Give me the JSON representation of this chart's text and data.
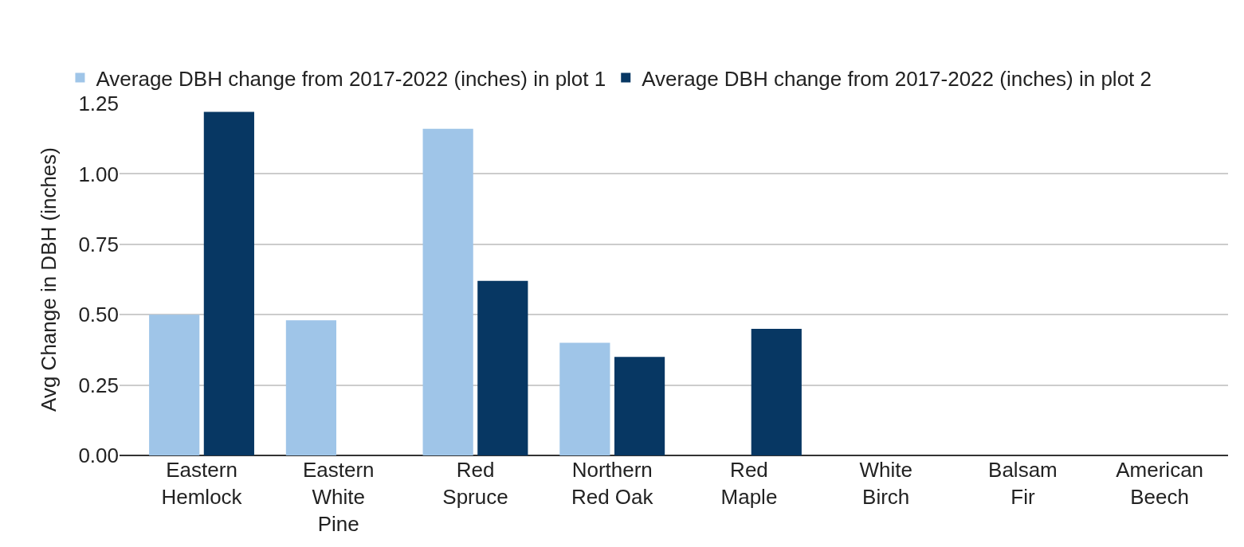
{
  "chart_data": {
    "type": "bar",
    "ylabel": "Avg Change in DBH (inches)",
    "categories": [
      "Eastern Hemlock",
      "Eastern White Pine",
      "Red Spruce",
      "Northern Red Oak",
      "Red Maple",
      "White Birch",
      "Balsam Fir",
      "American Beech"
    ],
    "series": [
      {
        "name": "Average DBH change from 2017-2022 (inches) in plot 1",
        "color": "#9fc5e8",
        "values": [
          0.5,
          0.48,
          1.16,
          0.4,
          null,
          null,
          null,
          null
        ]
      },
      {
        "name": "Average DBH change from 2017-2022 (inches) in plot 2",
        "color": "#073763",
        "values": [
          1.22,
          null,
          0.62,
          0.35,
          0.45,
          null,
          null,
          null
        ]
      }
    ],
    "ylim": [
      0,
      1.25
    ],
    "yticks": [
      {
        "value": 0,
        "label": "0.00"
      },
      {
        "value": 0.25,
        "label": "0.25"
      },
      {
        "value": 0.5,
        "label": "0.50"
      },
      {
        "value": 0.75,
        "label": "0.75"
      },
      {
        "value": 1,
        "label": "1.00"
      },
      {
        "value": 1.25,
        "label": "1.25"
      }
    ],
    "grid": "y",
    "legend": "top left"
  }
}
